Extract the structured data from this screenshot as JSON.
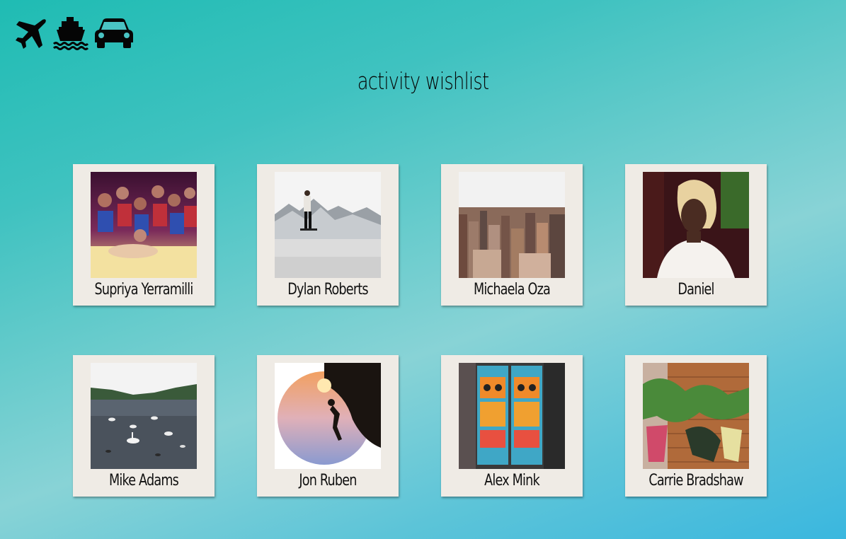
{
  "page": {
    "title": "activity wishlist"
  },
  "transport_icons": [
    {
      "name": "plane-icon"
    },
    {
      "name": "ship-icon"
    },
    {
      "name": "car-icon"
    }
  ],
  "colors": {
    "card_background": "#efebe5",
    "text": "#111111",
    "bg_start": "#1fbcb3",
    "bg_end": "#3ab7df"
  },
  "people": [
    {
      "name": "Supriya Yerramilli",
      "photo": "group-superhero-photo"
    },
    {
      "name": "Dylan Roberts",
      "photo": "skier-mountain-photo"
    },
    {
      "name": "Michaela Oza",
      "photo": "city-skyline-photo"
    },
    {
      "name": "Daniel",
      "photo": "portrait-photo"
    },
    {
      "name": "Mike Adams",
      "photo": "lake-swans-photo"
    },
    {
      "name": "Jon Ruben",
      "photo": "rock-climber-photo"
    },
    {
      "name": "Alex Mink",
      "photo": "street-art-doors-photo"
    },
    {
      "name": "Carrie Bradshaw",
      "photo": "graffiti-wall-photo"
    }
  ]
}
